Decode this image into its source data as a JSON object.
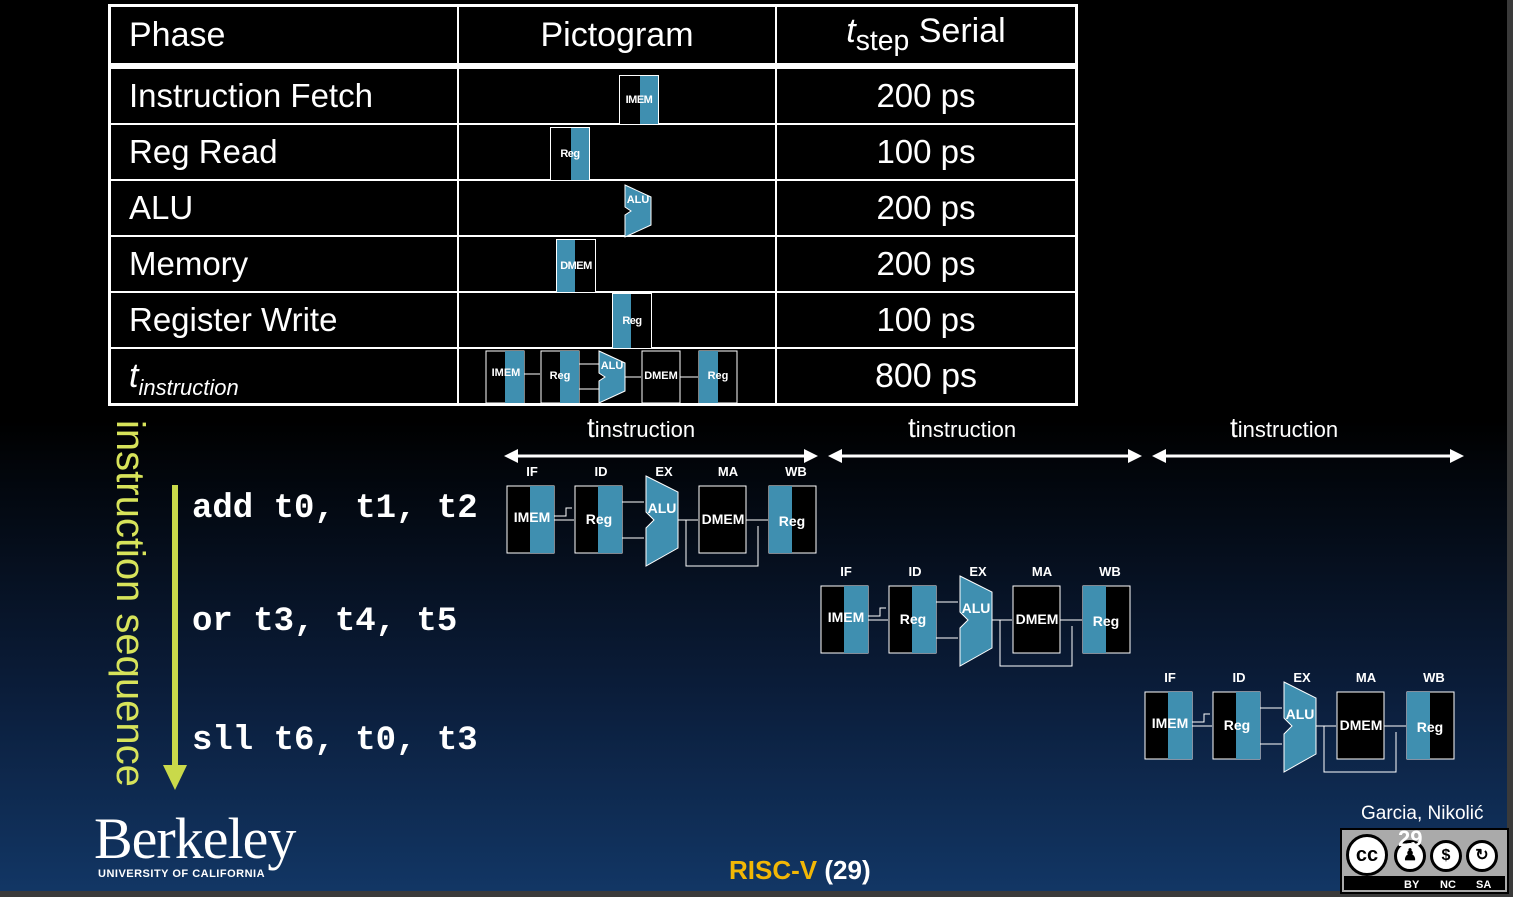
{
  "table": {
    "headers": {
      "phase": "Phase",
      "pictogram": "Pictogram",
      "t_main": "t",
      "t_sub": "step",
      "serial": "Serial"
    },
    "rows": [
      {
        "phase": "Instruction Fetch",
        "unit": "IMEM",
        "time": "200 ps"
      },
      {
        "phase": "Reg Read",
        "unit": "Reg",
        "time": "100 ps"
      },
      {
        "phase": "ALU",
        "unit": "ALU",
        "time": "200 ps"
      },
      {
        "phase": "Memory",
        "unit": "DMEM",
        "time": "200 ps"
      },
      {
        "phase": "Register Write",
        "unit": "Reg",
        "time": "100 ps"
      }
    ],
    "total": {
      "t_main": "t",
      "t_sub": "instruction",
      "time": "800 ps"
    }
  },
  "timeline": {
    "t_main": "t",
    "t_sub": "instruction",
    "stages": [
      "IF",
      "ID",
      "EX",
      "MA",
      "WB"
    ],
    "units": {
      "imem": "IMEM",
      "reg": "Reg",
      "alu": "ALU",
      "dmem": "DMEM"
    }
  },
  "sequence_label": "instruction sequence",
  "instructions": [
    "add t0, t1, t2",
    "or t3, t4, t5",
    "sll t6, t0, t3"
  ],
  "footer": {
    "risc": "RISC-V",
    "page": "(29)"
  },
  "authors": "Garcia, Nikolić",
  "logo": {
    "name": "Berkeley",
    "sub": "UNIVERSITY OF CALIFORNIA"
  },
  "license": {
    "cc": "cc",
    "page": "29",
    "labels": [
      "BY",
      "NC",
      "SA"
    ]
  },
  "colors": {
    "stripe": "#3f8fb0",
    "sequence": "#d7e35a",
    "risc": "#f2b705"
  }
}
